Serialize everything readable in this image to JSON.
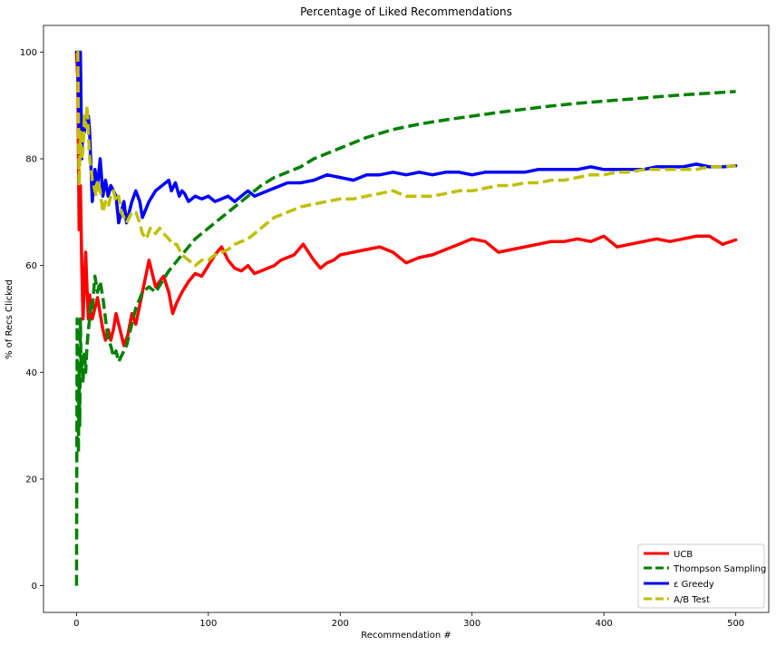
{
  "chart_data": {
    "type": "line",
    "title": "Percentage of Liked Recommendations",
    "xlabel": "Recommendation #",
    "ylabel": "% of Recs Clicked",
    "xlim": [
      -25,
      525
    ],
    "ylim": [
      -5,
      105
    ],
    "xticks": [
      0,
      100,
      200,
      300,
      400,
      500
    ],
    "yticks": [
      0,
      20,
      40,
      60,
      80,
      100
    ],
    "grid": false,
    "legend_position": "bottom-right",
    "series": [
      {
        "name": "UCB",
        "color": "#ff0000",
        "dash": "solid",
        "x": [
          0,
          1,
          2,
          3,
          4,
          5,
          6,
          7,
          8,
          9,
          10,
          11,
          12,
          14,
          16,
          18,
          20,
          22,
          24,
          26,
          28,
          30,
          33,
          36,
          39,
          42,
          45,
          50,
          55,
          60,
          63,
          66,
          70,
          73,
          76,
          80,
          85,
          90,
          95,
          100,
          105,
          110,
          115,
          120,
          125,
          130,
          135,
          140,
          145,
          150,
          155,
          160,
          165,
          172,
          180,
          185,
          190,
          195,
          200,
          210,
          220,
          230,
          240,
          250,
          260,
          270,
          280,
          290,
          300,
          310,
          320,
          330,
          340,
          350,
          360,
          370,
          380,
          390,
          400,
          410,
          420,
          430,
          440,
          450,
          460,
          470,
          480,
          490,
          500
        ],
        "values": [
          100,
          95,
          66.7,
          75,
          60,
          50,
          57,
          62.5,
          55.6,
          50,
          54.5,
          50,
          50,
          52,
          54,
          51,
          48,
          46,
          48,
          46,
          48,
          51,
          48,
          45,
          47,
          51,
          49,
          55,
          61,
          56,
          57,
          58,
          55,
          51,
          53,
          55,
          57,
          58.5,
          58,
          60,
          62,
          63.5,
          61,
          59.5,
          59,
          60,
          58.5,
          59,
          59.5,
          60,
          61,
          61.5,
          62,
          64,
          61,
          59.5,
          60.5,
          61,
          62,
          62.5,
          63,
          63.5,
          62.5,
          60.5,
          61.5,
          62,
          63,
          64,
          65,
          64.5,
          62.5,
          63,
          63.5,
          64,
          64.5,
          64.5,
          65,
          64.5,
          65.5,
          63.5,
          64,
          64.5,
          65,
          64.5,
          65,
          65.5,
          65.5,
          64,
          64.8
        ]
      },
      {
        "name": "Thompson Sampling",
        "color": "#008000",
        "dash": "dashed",
        "x": [
          0,
          0.5,
          1,
          1.5,
          2,
          2.5,
          3,
          3.5,
          4,
          5,
          6,
          7,
          8,
          9,
          10,
          11,
          12,
          13,
          14,
          16,
          18,
          20,
          22,
          24,
          26,
          28,
          30,
          32,
          34,
          36,
          38,
          40,
          45,
          50,
          55,
          60,
          65,
          70,
          80,
          90,
          100,
          110,
          120,
          130,
          140,
          150,
          160,
          170,
          180,
          200,
          220,
          240,
          260,
          280,
          300,
          320,
          340,
          360,
          380,
          400,
          420,
          440,
          460,
          480,
          500
        ],
        "values": [
          0,
          50,
          33,
          25,
          40,
          30,
          50,
          40,
          43,
          38,
          44,
          40,
          45,
          48,
          50,
          53,
          52,
          55,
          58,
          55,
          57,
          54,
          50,
          46,
          45,
          43,
          44,
          42,
          43,
          44,
          45,
          47,
          52,
          55,
          56,
          55,
          57,
          59,
          62,
          65,
          67,
          69,
          71,
          73,
          75,
          76.5,
          77.5,
          78.5,
          80,
          82,
          84,
          85.5,
          86.5,
          87.3,
          88,
          88.7,
          89.3,
          89.9,
          90.4,
          90.8,
          91.2,
          91.6,
          92,
          92.3,
          92.6
        ]
      },
      {
        "name": "ε Greedy",
        "color": "#0000ff",
        "dash": "solid",
        "x": [
          0,
          1,
          2,
          3,
          4,
          5,
          6,
          7,
          8,
          9,
          10,
          12,
          14,
          16,
          18,
          20,
          22,
          24,
          26,
          28,
          30,
          32,
          34,
          36,
          38,
          40,
          42,
          45,
          48,
          50,
          55,
          60,
          65,
          70,
          72,
          75,
          78,
          80,
          82,
          85,
          90,
          95,
          100,
          105,
          110,
          115,
          120,
          125,
          130,
          135,
          140,
          145,
          150,
          155,
          160,
          170,
          180,
          190,
          200,
          210,
          220,
          230,
          240,
          250,
          260,
          270,
          280,
          290,
          300,
          310,
          320,
          330,
          340,
          350,
          360,
          370,
          380,
          390,
          400,
          410,
          420,
          430,
          440,
          450,
          460,
          470,
          480,
          490,
          500
        ],
        "values": [
          100,
          100,
          85,
          100,
          80,
          87,
          85,
          88,
          87,
          88,
          85,
          72,
          78,
          75,
          80,
          73,
          76,
          73,
          75,
          74,
          73,
          68,
          70,
          72,
          68,
          70,
          72,
          74,
          72,
          69,
          72,
          74,
          75,
          76,
          74,
          75.5,
          73,
          74,
          73.5,
          72,
          73,
          72.5,
          73,
          72,
          72.5,
          73,
          72,
          73,
          74,
          73,
          73.5,
          74,
          74.5,
          75,
          75.5,
          75.5,
          76,
          77,
          76.5,
          76,
          77,
          77,
          77.5,
          77,
          77.5,
          77,
          77.5,
          77.5,
          77,
          77.5,
          77.5,
          77.5,
          77.5,
          78,
          78,
          78,
          78,
          78.5,
          78,
          78,
          78,
          78,
          78.5,
          78.5,
          78.5,
          79,
          78.5,
          78.5,
          78.7
        ]
      },
      {
        "name": "A/B Test",
        "color": "#bfbf00",
        "dash": "dashed",
        "x": [
          0,
          1,
          2,
          3,
          4,
          5,
          6,
          7,
          8,
          9,
          10,
          11,
          12,
          13,
          14,
          15,
          16,
          18,
          20,
          22,
          24,
          26,
          28,
          30,
          32,
          34,
          36,
          38,
          40,
          42,
          45,
          48,
          50,
          53,
          56,
          60,
          63,
          66,
          70,
          73,
          76,
          80,
          85,
          90,
          95,
          100,
          105,
          110,
          115,
          120,
          130,
          140,
          150,
          160,
          170,
          180,
          190,
          200,
          210,
          220,
          230,
          240,
          250,
          260,
          270,
          280,
          290,
          300,
          310,
          320,
          330,
          340,
          350,
          360,
          370,
          380,
          390,
          400,
          410,
          420,
          430,
          440,
          450,
          460,
          470,
          480,
          490,
          500
        ],
        "values": [
          100,
          100,
          75,
          85,
          80,
          82,
          88,
          86,
          90,
          85,
          80,
          78,
          76,
          75,
          74,
          73,
          76,
          74,
          70,
          72,
          71,
          73,
          74,
          72,
          73,
          70,
          69,
          68,
          69,
          70,
          70,
          68,
          66,
          65,
          67,
          66,
          67,
          66,
          65,
          64,
          64,
          62,
          61,
          60,
          61,
          61,
          62,
          62.5,
          63,
          64,
          65,
          67,
          69,
          70,
          71,
          71.5,
          72,
          72.5,
          72.5,
          73,
          73.5,
          74,
          73,
          73,
          73,
          73.5,
          74,
          74,
          74.5,
          75,
          75,
          75.5,
          75.5,
          76,
          76,
          76.5,
          77,
          77,
          77.5,
          77.5,
          78,
          78,
          78,
          78,
          78,
          78.5,
          78.5,
          78.7
        ]
      }
    ]
  }
}
